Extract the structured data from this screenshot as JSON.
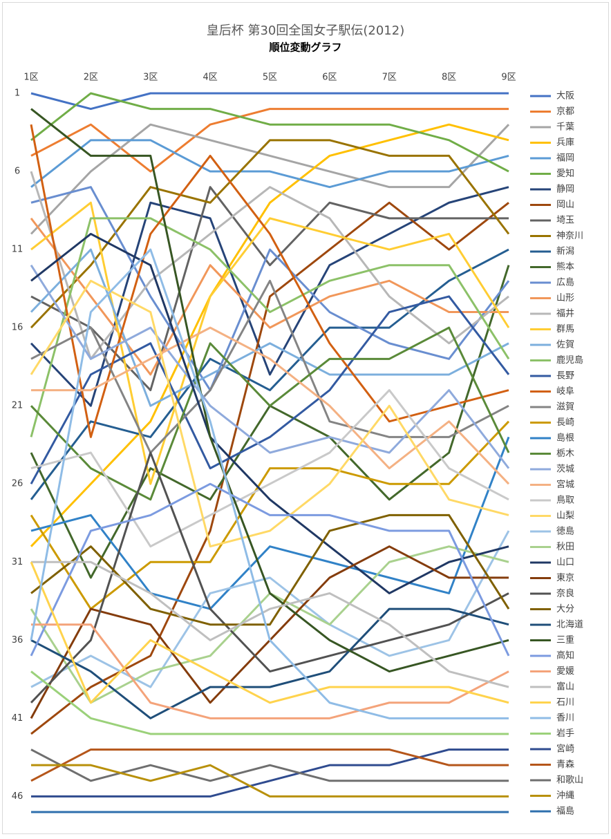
{
  "chart_data": {
    "type": "line",
    "title": "皇后杯 第30回全国女子駅伝(2012)",
    "subtitle": "順位変動グラフ",
    "categories": [
      "1区",
      "2区",
      "3区",
      "4区",
      "5区",
      "6区",
      "7区",
      "8区",
      "9区"
    ],
    "ylim": [
      1,
      47
    ],
    "y_inverted": true,
    "yticks": [
      1,
      6,
      11,
      16,
      21,
      26,
      31,
      36,
      41,
      46
    ],
    "legend": "right",
    "series": [
      {
        "name": "大阪",
        "color": "#4472c4",
        "values": [
          1,
          2,
          1,
          1,
          1,
          1,
          1,
          1,
          1
        ]
      },
      {
        "name": "京都",
        "color": "#ed7d31",
        "values": [
          5,
          3,
          6,
          3,
          2,
          2,
          2,
          2,
          2
        ]
      },
      {
        "name": "千葉",
        "color": "#a5a5a5",
        "values": [
          10,
          6,
          3,
          4,
          5,
          6,
          7,
          7,
          3
        ]
      },
      {
        "name": "兵庫",
        "color": "#ffc000",
        "values": [
          30,
          26,
          22,
          14,
          8,
          5,
          4,
          3,
          4
        ]
      },
      {
        "name": "福岡",
        "color": "#5b9bd5",
        "values": [
          7,
          4,
          4,
          6,
          6,
          7,
          6,
          6,
          5
        ]
      },
      {
        "name": "愛知",
        "color": "#70ad47",
        "values": [
          4,
          1,
          2,
          2,
          3,
          3,
          3,
          4,
          6
        ]
      },
      {
        "name": "静岡",
        "color": "#264478",
        "values": [
          17,
          21,
          8,
          9,
          19,
          12,
          10,
          8,
          7
        ]
      },
      {
        "name": "岡山",
        "color": "#9e480e",
        "values": [
          42,
          39,
          37,
          29,
          14,
          11,
          8,
          11,
          8
        ]
      },
      {
        "name": "埼玉",
        "color": "#636363",
        "values": [
          14,
          16,
          20,
          7,
          12,
          8,
          9,
          9,
          9
        ]
      },
      {
        "name": "神奈川",
        "color": "#997300",
        "values": [
          16,
          12,
          7,
          8,
          4,
          4,
          5,
          5,
          10
        ]
      },
      {
        "name": "新潟",
        "color": "#255e91",
        "values": [
          27,
          22,
          23,
          18,
          20,
          16,
          16,
          13,
          11
        ]
      },
      {
        "name": "熊本",
        "color": "#43682b",
        "values": [
          24,
          32,
          25,
          27,
          21,
          23,
          27,
          24,
          12
        ]
      },
      {
        "name": "広島",
        "color": "#698ed0",
        "values": [
          8,
          7,
          14,
          20,
          11,
          15,
          17,
          18,
          13
        ]
      },
      {
        "name": "山形",
        "color": "#f1975a",
        "values": [
          9,
          14,
          19,
          12,
          16,
          14,
          13,
          15,
          15
        ]
      },
      {
        "name": "福井",
        "color": "#b7b7b7",
        "values": [
          6,
          18,
          13,
          10,
          7,
          9,
          14,
          17,
          14
        ]
      },
      {
        "name": "群馬",
        "color": "#ffcd33",
        "values": [
          11,
          8,
          26,
          14,
          9,
          10,
          11,
          10,
          16
        ]
      },
      {
        "name": "佐賀",
        "color": "#7cafdd",
        "values": [
          15,
          11,
          21,
          19,
          17,
          19,
          19,
          19,
          17
        ]
      },
      {
        "name": "鹿児島",
        "color": "#8cc168",
        "values": [
          23,
          9,
          9,
          11,
          15,
          13,
          12,
          12,
          18
        ]
      },
      {
        "name": "長野",
        "color": "#335aa1",
        "values": [
          26,
          19,
          17,
          25,
          23,
          20,
          15,
          14,
          19
        ]
      },
      {
        "name": "岐阜",
        "color": "#d26012",
        "values": [
          3,
          23,
          10,
          5,
          10,
          17,
          22,
          21,
          20
        ]
      },
      {
        "name": "滋賀",
        "color": "#848484",
        "values": [
          18,
          16,
          24,
          20,
          13,
          22,
          23,
          23,
          21
        ]
      },
      {
        "name": "長崎",
        "color": "#cc9a00",
        "values": [
          28,
          34,
          31,
          31,
          25,
          25,
          26,
          26,
          22
        ]
      },
      {
        "name": "島根",
        "color": "#3182c7",
        "values": [
          29,
          28,
          33,
          34,
          30,
          31,
          32,
          33,
          23
        ]
      },
      {
        "name": "栃木",
        "color": "#5a8a39",
        "values": [
          21,
          25,
          27,
          17,
          21,
          18,
          18,
          16,
          24
        ]
      },
      {
        "name": "茨城",
        "color": "#8faadc",
        "values": [
          12,
          18,
          16,
          21,
          24,
          23,
          24,
          20,
          25
        ]
      },
      {
        "name": "宮城",
        "color": "#f4b183",
        "values": [
          20,
          20,
          18,
          16,
          18,
          21,
          25,
          22,
          26
        ]
      },
      {
        "name": "鳥取",
        "color": "#c9c9c9",
        "values": [
          25,
          24,
          30,
          28,
          26,
          24,
          20,
          25,
          27
        ]
      },
      {
        "name": "山梨",
        "color": "#ffd966",
        "values": [
          19,
          13,
          15,
          30,
          29,
          26,
          21,
          27,
          28
        ]
      },
      {
        "name": "徳島",
        "color": "#9dc3e6",
        "values": [
          39,
          37,
          39,
          33,
          32,
          35,
          37,
          36,
          29
        ]
      },
      {
        "name": "秋田",
        "color": "#a9d18e",
        "values": [
          34,
          40,
          38,
          37,
          33,
          35,
          31,
          30,
          31
        ]
      },
      {
        "name": "山口",
        "color": "#203864",
        "values": [
          13,
          10,
          12,
          23,
          27,
          30,
          33,
          31,
          30
        ]
      },
      {
        "name": "東京",
        "color": "#843c0c",
        "values": [
          41,
          34,
          35,
          40,
          36,
          32,
          30,
          32,
          32
        ]
      },
      {
        "name": "奈良",
        "color": "#525252",
        "values": [
          40,
          36,
          24,
          34,
          38,
          37,
          36,
          35,
          33
        ]
      },
      {
        "name": "大分",
        "color": "#7f6000",
        "values": [
          33,
          30,
          34,
          35,
          35,
          29,
          28,
          28,
          34
        ]
      },
      {
        "name": "北海道",
        "color": "#1f4e79",
        "values": [
          36,
          38,
          41,
          39,
          39,
          38,
          34,
          34,
          35
        ]
      },
      {
        "name": "三重",
        "color": "#375623",
        "values": [
          2,
          5,
          5,
          23,
          33,
          36,
          38,
          37,
          36
        ]
      },
      {
        "name": "高知",
        "color": "#7c9be0",
        "values": [
          37,
          29,
          28,
          26,
          28,
          28,
          29,
          29,
          37
        ]
      },
      {
        "name": "愛媛",
        "color": "#f4a37a",
        "values": [
          35,
          35,
          40,
          41,
          41,
          41,
          40,
          40,
          38
        ]
      },
      {
        "name": "富山",
        "color": "#bfbfbf",
        "values": [
          31,
          31,
          33,
          36,
          34,
          33,
          35,
          38,
          39
        ]
      },
      {
        "name": "石川",
        "color": "#ffd34d",
        "values": [
          31,
          40,
          36,
          38,
          40,
          39,
          39,
          39,
          40
        ]
      },
      {
        "name": "香川",
        "color": "#8fbce6",
        "values": [
          36,
          15,
          11,
          22,
          36,
          40,
          41,
          41,
          41
        ]
      },
      {
        "name": "岩手",
        "color": "#9bd17a",
        "values": [
          38,
          41,
          42,
          42,
          42,
          42,
          42,
          42,
          42
        ]
      },
      {
        "name": "宮崎",
        "color": "#2f4b8f",
        "values": [
          46,
          46,
          46,
          46,
          45,
          44,
          44,
          43,
          43
        ]
      },
      {
        "name": "青森",
        "color": "#b5561a",
        "values": [
          45,
          43,
          43,
          43,
          43,
          43,
          43,
          44,
          44
        ]
      },
      {
        "name": "和歌山",
        "color": "#6f6f6f",
        "values": [
          43,
          45,
          44,
          45,
          44,
          45,
          45,
          45,
          45
        ]
      },
      {
        "name": "沖縄",
        "color": "#b8900a",
        "values": [
          44,
          44,
          45,
          44,
          46,
          46,
          46,
          46,
          46
        ]
      },
      {
        "name": "福島",
        "color": "#2e6fad",
        "values": [
          47,
          47,
          47,
          47,
          47,
          47,
          47,
          47,
          47
        ]
      }
    ]
  }
}
